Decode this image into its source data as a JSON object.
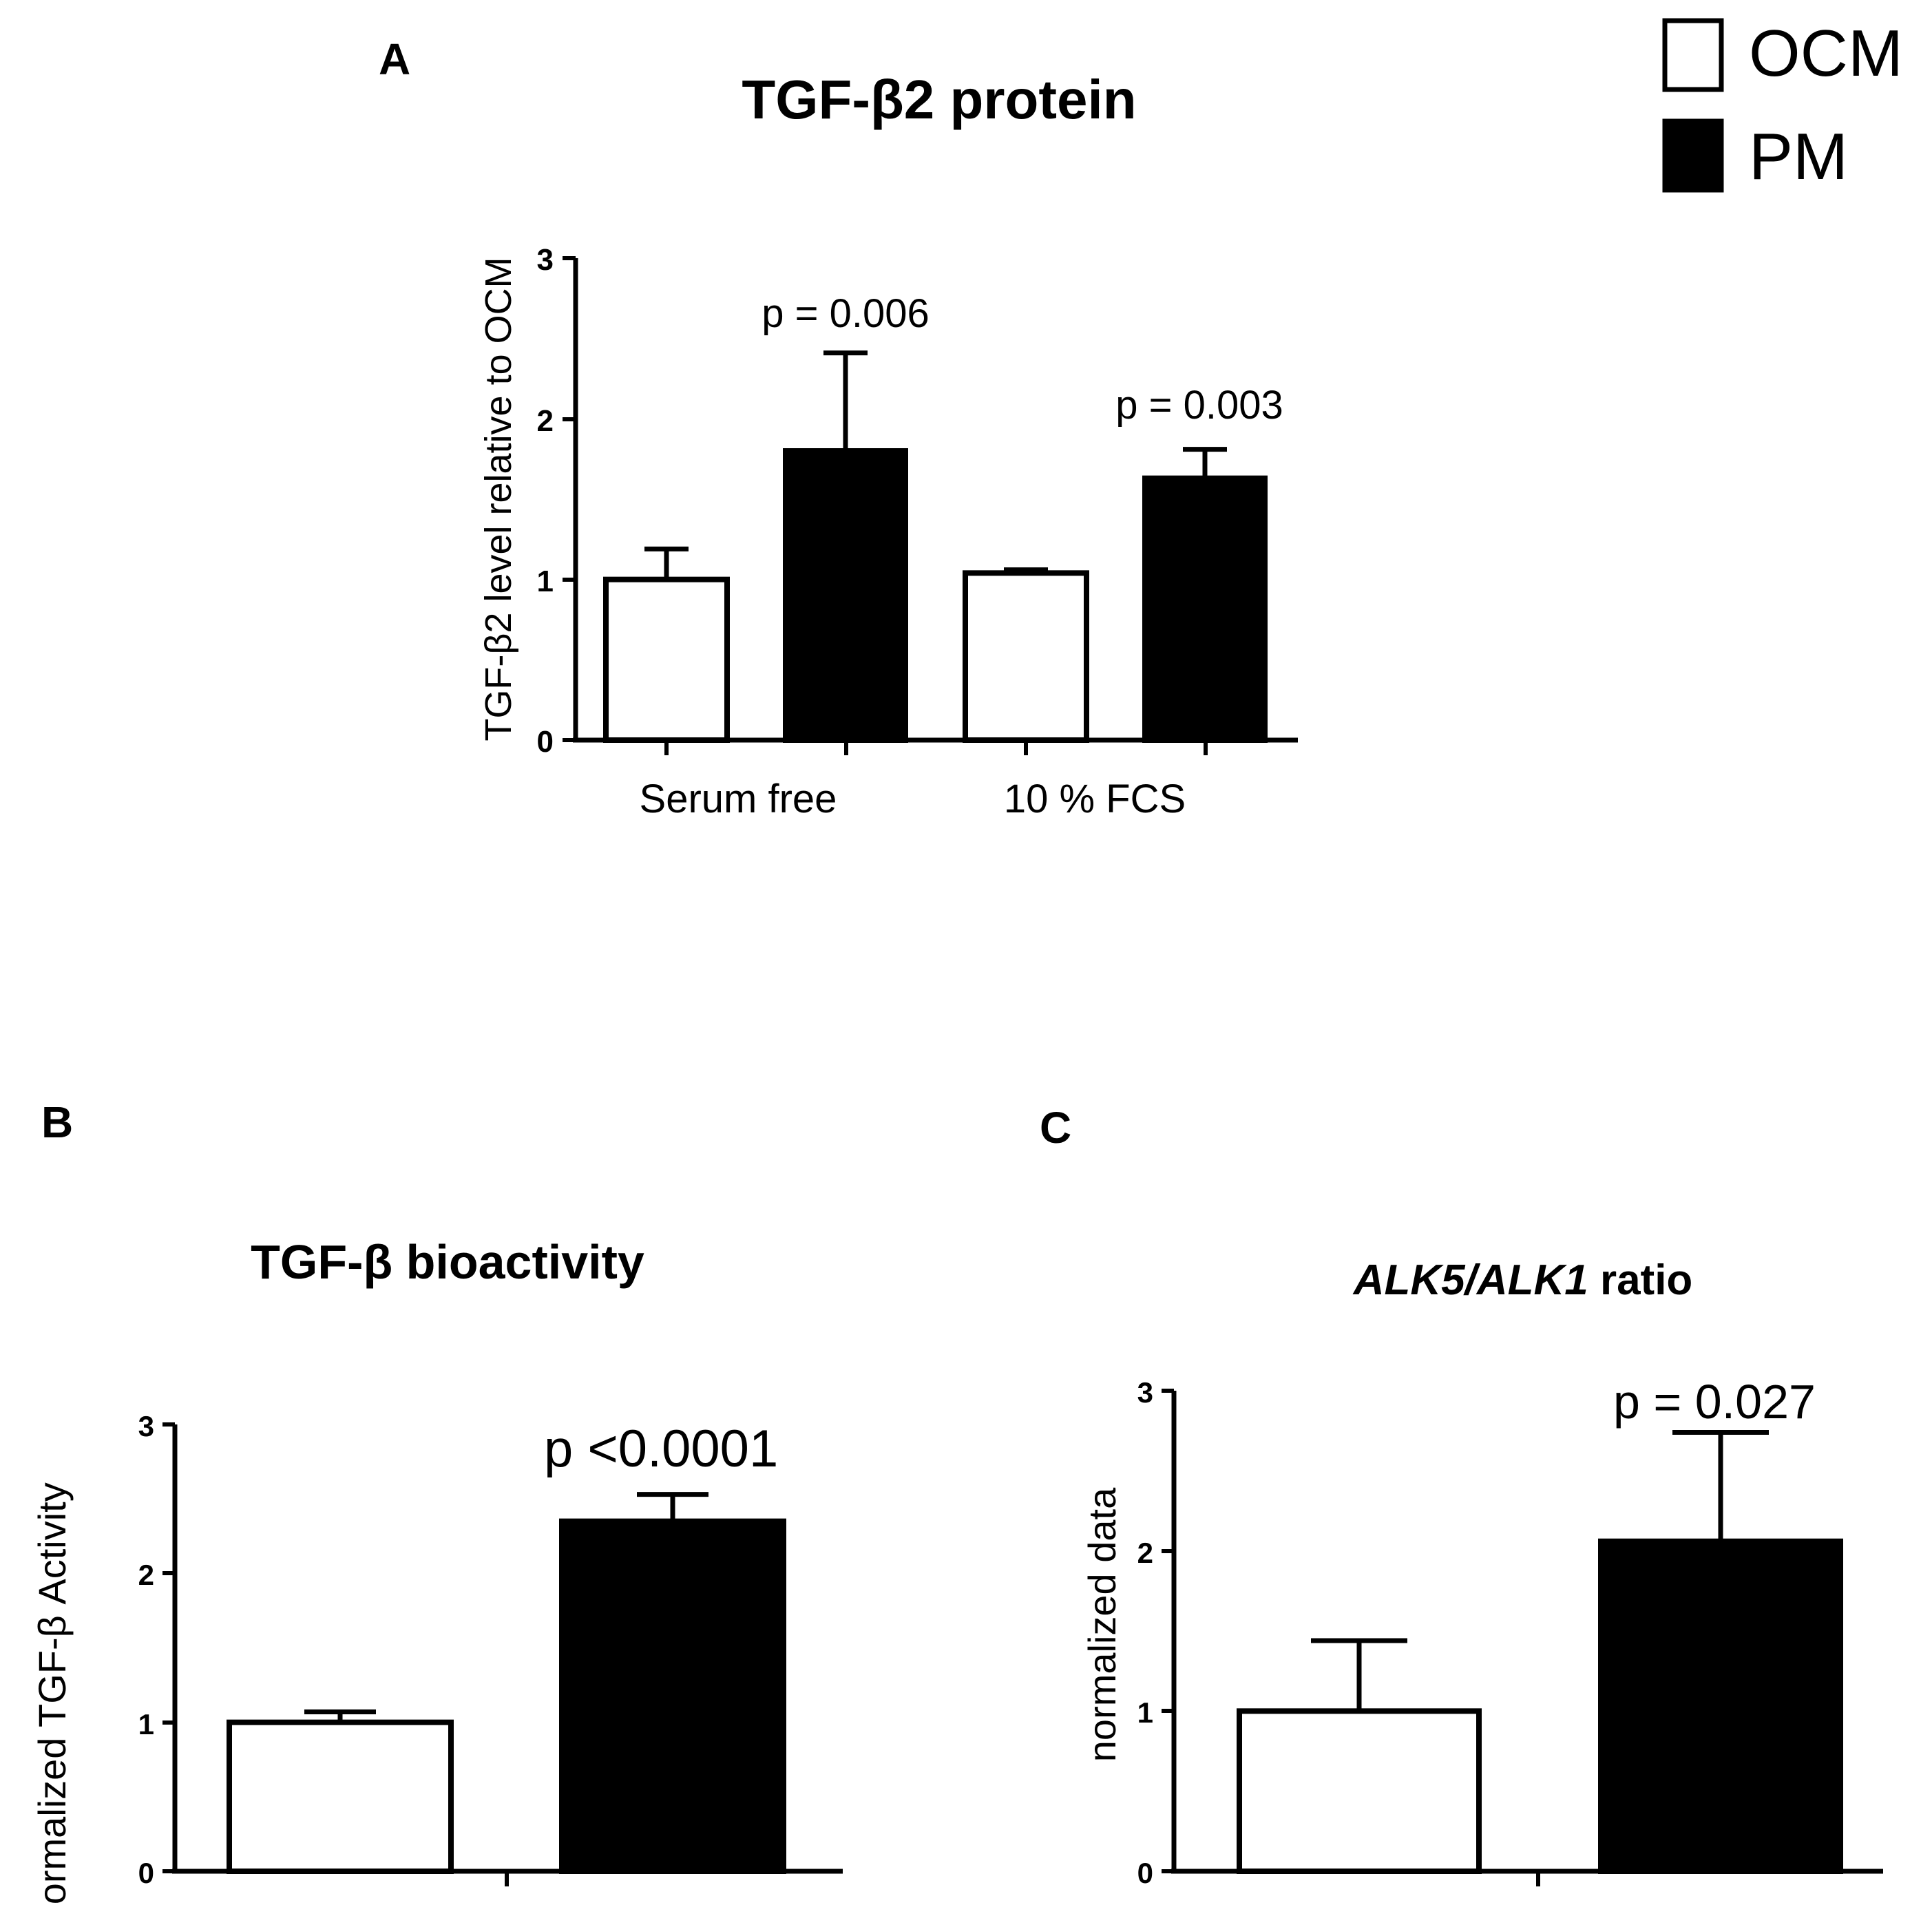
{
  "legend": {
    "items": [
      {
        "label": "OCM",
        "color": "#ffffff"
      },
      {
        "label": "PM",
        "color": "#000000"
      }
    ]
  },
  "chart_data": [
    {
      "panel": "A",
      "type": "bar",
      "title": "TGF-β2 protein",
      "ylabel": "TGF-β2 level relative to OCM",
      "xlabel": "",
      "categories": [
        "Serum free",
        "10 % FCS"
      ],
      "series": [
        {
          "name": "OCM",
          "values": [
            1.0,
            1.04
          ],
          "errors": [
            0.19,
            0.02
          ]
        },
        {
          "name": "PM",
          "values": [
            1.8,
            1.63
          ],
          "errors": [
            0.61,
            0.18
          ]
        }
      ],
      "annotations": [
        "p = 0.006",
        "p = 0.003"
      ],
      "ylim": [
        0,
        3
      ],
      "yticks": [
        "0",
        "1",
        "2",
        "3"
      ]
    },
    {
      "panel": "B",
      "type": "bar",
      "title": "TGF-β bioactivity",
      "ylabel": "Normalized TGF-β Activity",
      "xlabel": "",
      "categories": [
        ""
      ],
      "series": [
        {
          "name": "OCM",
          "values": [
            1.0
          ],
          "errors": [
            0.07
          ]
        },
        {
          "name": "PM",
          "values": [
            2.35
          ],
          "errors": [
            0.18
          ]
        }
      ],
      "annotations": [
        "p  <0.0001"
      ],
      "ylim": [
        0,
        3
      ],
      "yticks": [
        "0",
        "1",
        "2",
        "3"
      ]
    },
    {
      "panel": "C",
      "type": "bar",
      "title_italic": "ALK5/ALK1",
      "title_rest": " ratio",
      "ylabel": "normalized data",
      "xlabel": "",
      "categories": [
        ""
      ],
      "series": [
        {
          "name": "OCM",
          "values": [
            1.0
          ],
          "errors": [
            0.44
          ]
        },
        {
          "name": "PM",
          "values": [
            2.06
          ],
          "errors": [
            0.68
          ]
        }
      ],
      "annotations": [
        "p = 0.027"
      ],
      "ylim": [
        0,
        3
      ],
      "yticks": [
        "0",
        "1",
        "2",
        "3"
      ]
    }
  ]
}
